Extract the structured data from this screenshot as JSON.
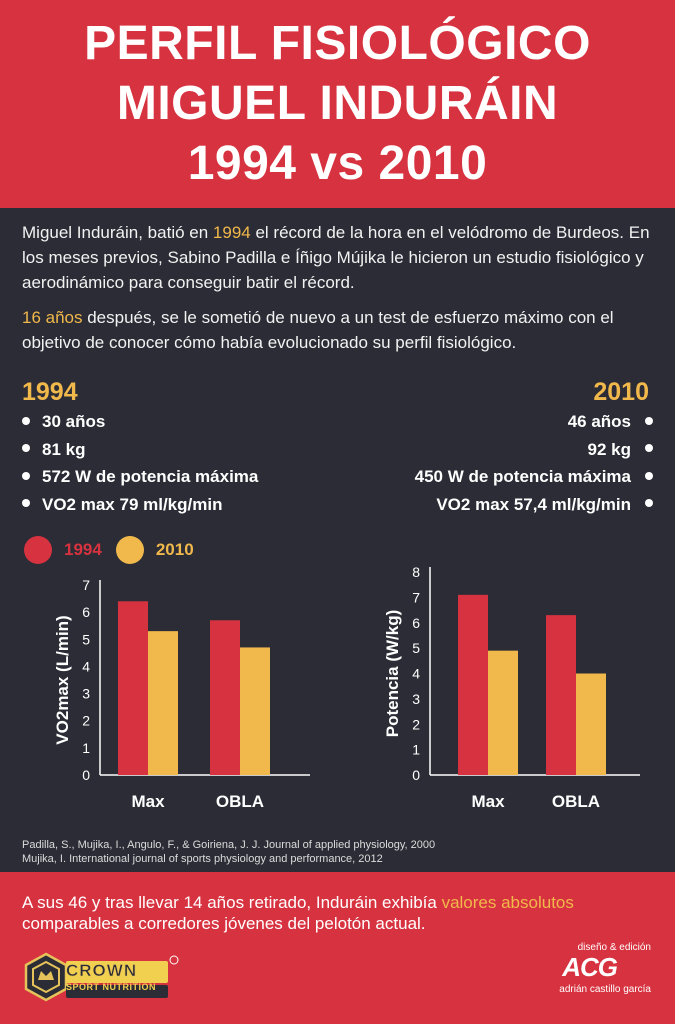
{
  "header": {
    "line1": "PERFIL FISIOLÓGICO",
    "line2": "MIGUEL INDURÁIN",
    "line3": "1994 vs 2010"
  },
  "intro": {
    "p1_a": "Miguel Induráin, batió en ",
    "p1_hl": "1994",
    "p1_b": " el récord de la hora en el velódromo de Burdeos. En los meses previos, Sabino Padilla e Íñigo Mújika le hicieron un estudio fisiológico y aerodinámico para conseguir batir el récord.",
    "p2_hl": "16 años",
    "p2_b": " después, se le sometió de nuevo a un test de esfuerzo máximo con el objetivo de conocer cómo había evolucionado su perfil fisiológico."
  },
  "profile_1994": {
    "year": "1994",
    "items": [
      "30 años",
      "81 kg",
      "572 W de potencia máxima",
      "VO2 max 79 ml/kg/min"
    ]
  },
  "profile_2010": {
    "year": "2010",
    "items": [
      "46 años",
      "92 kg",
      "450 W de potencia máxima",
      "VO2 max 57,4 ml/kg/min"
    ]
  },
  "legend": {
    "items": [
      {
        "label": "1994",
        "color": "#d7323f"
      },
      {
        "label": "2010",
        "color": "#f1b84b"
      }
    ]
  },
  "chart_data": [
    {
      "type": "bar",
      "categories": [
        "Max",
        "OBLA"
      ],
      "series": [
        {
          "name": "1994",
          "values": [
            6.4,
            5.7
          ],
          "color": "#d7323f"
        },
        {
          "name": "2010",
          "values": [
            5.3,
            4.7
          ],
          "color": "#f1b84b"
        }
      ],
      "ylabel": "VO2max (L/min)",
      "ylim": [
        0,
        7
      ],
      "yticks": [
        "0",
        "1",
        "2",
        "3",
        "4",
        "5",
        "6",
        "7"
      ]
    },
    {
      "type": "bar",
      "categories": [
        "Max",
        "OBLA"
      ],
      "series": [
        {
          "name": "1994",
          "values": [
            7.1,
            6.3
          ],
          "color": "#d7323f"
        },
        {
          "name": "2010",
          "values": [
            4.9,
            4.0
          ],
          "color": "#f1b84b"
        }
      ],
      "ylabel": "Potencia (W/kg)",
      "ylim": [
        0,
        8
      ],
      "yticks": [
        "0",
        "1",
        "2",
        "3",
        "4",
        "5",
        "6",
        "7",
        "8"
      ]
    }
  ],
  "references": [
    "Padilla, S., Mujika, I., Angulo, F., & Goiriena, J. J. Journal of applied physiology, 2000",
    "Mujika, I. International journal of sports physiology and performance, 2012"
  ],
  "footer": {
    "text_a": "A sus 46 y tras llevar 14 años retirado, Induráin exhibía ",
    "text_hl": "valores absolutos",
    "text_b": " comparables a corredores jóvenes del pelotón actual."
  },
  "logos": {
    "crown_word": "CROWN",
    "crown_sub": "SPORT NUTRITION",
    "credit_top": "diseño & edición",
    "credit_logo": "ACG",
    "credit_name": "adrián castillo garcía"
  }
}
